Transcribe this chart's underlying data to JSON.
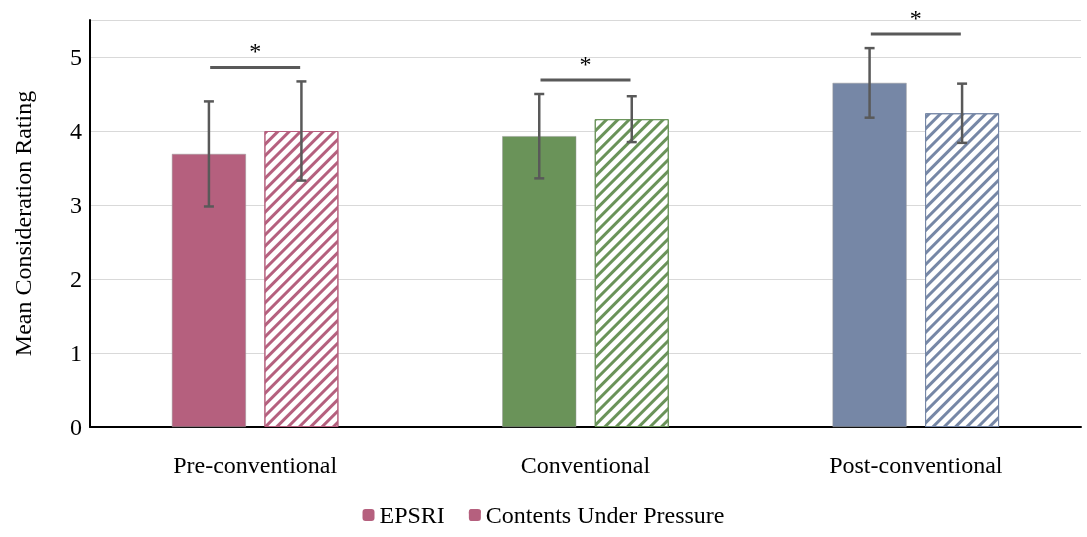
{
  "chart_data": {
    "type": "bar",
    "ylabel": "Mean Consideration Rating",
    "categories": [
      "Pre-conventional",
      "Conventional",
      "Post-conventional"
    ],
    "series": [
      {
        "name": "EPSRI",
        "colors": [
          "#b5607e",
          "#6a9359",
          "#7687a6"
        ],
        "values": [
          3.69,
          3.93,
          4.65
        ],
        "errors": [
          0.71,
          0.57,
          0.47
        ]
      },
      {
        "name": "Contents Under Pressure",
        "colors": [
          "#b5607e",
          "#6a9359",
          "#7687a6"
        ],
        "values": [
          4.0,
          4.16,
          4.24
        ],
        "errors": [
          0.67,
          0.31,
          0.4
        ]
      }
    ],
    "ylim": [
      0,
      5.5
    ],
    "yticks": [
      0,
      1,
      2,
      3,
      4,
      5
    ],
    "grid": "y",
    "legend": "bottom",
    "annotations": [
      "*",
      "*",
      "*"
    ]
  }
}
